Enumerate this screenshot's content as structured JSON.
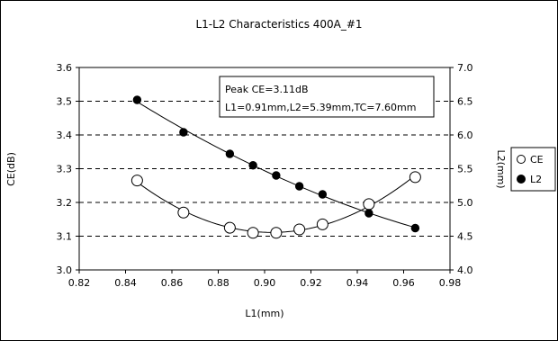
{
  "chart_data": {
    "type": "scatter",
    "title": "L1-L2 Characteristics 400A_#1",
    "xlabel": "L1(mm)",
    "ylabel_left": "CE(dB)",
    "ylabel_right": "L2(mm)",
    "xlim": [
      0.82,
      0.98
    ],
    "ylim_left": [
      3.0,
      3.6
    ],
    "ylim_right": [
      4.0,
      7.0
    ],
    "x_ticks": [
      "0.82",
      "0.84",
      "0.86",
      "0.88",
      "0.90",
      "0.92",
      "0.94",
      "0.96",
      "0.98"
    ],
    "y_ticks_left": [
      "3.0",
      "3.1",
      "3.2",
      "3.3",
      "3.4",
      "3.5",
      "3.6"
    ],
    "y_ticks_right": [
      "4.0",
      "4.5",
      "5.0",
      "5.5",
      "6.0",
      "6.5",
      "7.0"
    ],
    "grid": "horizontal-dashed",
    "legend_position": "right",
    "annotation": [
      "Peak CE=3.11dB",
      "L1=0.91mm,L2=5.39mm,TC=7.60mm"
    ],
    "series": [
      {
        "name": "CE",
        "axis": "left",
        "marker": "open-circle",
        "x": [
          0.845,
          0.865,
          0.885,
          0.895,
          0.905,
          0.915,
          0.925,
          0.945,
          0.965
        ],
        "y": [
          3.265,
          3.17,
          3.125,
          3.11,
          3.11,
          3.12,
          3.135,
          3.195,
          3.275
        ]
      },
      {
        "name": "L2",
        "axis": "right",
        "marker": "filled-circle",
        "x": [
          0.845,
          0.865,
          0.885,
          0.895,
          0.905,
          0.915,
          0.925,
          0.945,
          0.965
        ],
        "y": [
          6.52,
          6.04,
          5.72,
          5.55,
          5.4,
          5.24,
          5.12,
          4.84,
          4.62
        ]
      }
    ]
  }
}
